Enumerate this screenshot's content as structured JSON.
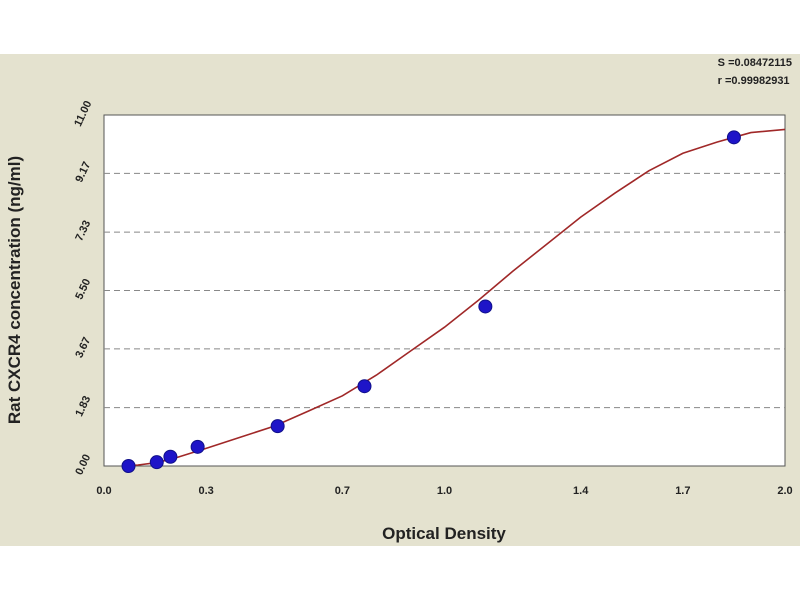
{
  "fit_stats": {
    "s": "S =0.08472115",
    "r": "r =0.99982931"
  },
  "chart_data": {
    "type": "scatter",
    "xlabel": "Optical Density",
    "ylabel": "Rat CXCR4 concentration (ng/ml)",
    "xlim": [
      0.0,
      2.0
    ],
    "ylim": [
      0.0,
      11.0
    ],
    "x_ticks": [
      0.0,
      0.3,
      0.7,
      1.0,
      1.4,
      1.7,
      2.0
    ],
    "x_tick_labels": [
      "0.0",
      "0.3",
      "0.7",
      "1.0",
      "1.4",
      "1.7",
      "2.0"
    ],
    "y_ticks": [
      0.0,
      1.83,
      3.67,
      5.5,
      7.33,
      9.17,
      11.0
    ],
    "y_tick_labels": [
      "0.00",
      "1.83",
      "3.67",
      "5.50",
      "7.33",
      "9.17",
      "11.00"
    ],
    "grid": "horizontal-dashed",
    "series": [
      {
        "kind": "points",
        "color": "#1e14c8",
        "x": [
          0.072,
          0.155,
          0.195,
          0.275,
          0.51,
          0.765,
          1.12,
          1.85
        ],
        "y": [
          0.0,
          0.12,
          0.29,
          0.6,
          1.25,
          2.5,
          5.0,
          10.3
        ]
      },
      {
        "kind": "fit-curve",
        "color": "#a02828",
        "x": [
          0.06,
          0.1,
          0.15,
          0.2,
          0.3,
          0.4,
          0.5,
          0.6,
          0.7,
          0.8,
          0.9,
          1.0,
          1.1,
          1.2,
          1.3,
          1.4,
          1.5,
          1.6,
          1.7,
          1.8,
          1.85,
          1.9,
          2.0
        ],
        "y": [
          0.0,
          0.03,
          0.1,
          0.22,
          0.55,
          0.9,
          1.25,
          1.72,
          2.2,
          2.85,
          3.6,
          4.35,
          5.2,
          6.1,
          6.95,
          7.8,
          8.55,
          9.25,
          9.8,
          10.15,
          10.3,
          10.45,
          10.55
        ]
      }
    ]
  },
  "colors": {
    "panel_bg": "#e4e2cf",
    "plot_bg": "#ffffff",
    "grid": "#888888",
    "points": "#1e14c8",
    "curve": "#a02828"
  }
}
